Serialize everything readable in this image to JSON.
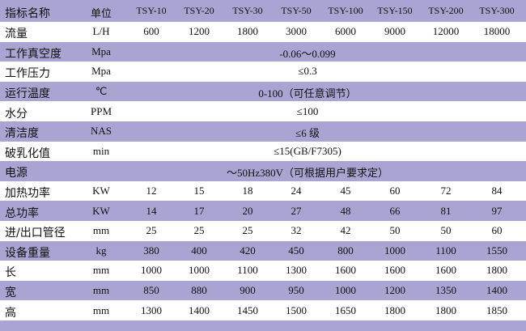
{
  "table": {
    "header": {
      "label": "指标名称",
      "unit": "单位",
      "models": [
        "TSY-10",
        "TSY-20",
        "TSY-30",
        "TSY-50",
        "TSY-100",
        "TSY-150",
        "TSY-200",
        "TSY-300"
      ]
    },
    "rows": [
      {
        "label": "流量",
        "unit": "L/H",
        "values": [
          600,
          1200,
          1800,
          3000,
          6000,
          9000,
          12000,
          18000
        ]
      },
      {
        "label": "工作真空度",
        "unit": "Mpa",
        "value": "-0.06～0.099"
      },
      {
        "label": "工作压力",
        "unit": "Mpa",
        "value": "≤0.3"
      },
      {
        "label": "运行温度",
        "unit": "℃",
        "value": "0-100（可任意调节）"
      },
      {
        "label": "水分",
        "unit": "PPM",
        "value": "≤100"
      },
      {
        "label": "清洁度",
        "unit": "NAS",
        "value": "≤6 级"
      },
      {
        "label": "破乳化值",
        "unit": "min",
        "value": "≤15(GB/F7305)"
      },
      {
        "label": "电源",
        "value": "～50Hz380V（可根据用户要求定）"
      },
      {
        "label": "加热功率",
        "unit": "KW",
        "values": [
          12,
          15,
          18,
          24,
          45,
          60,
          72,
          84
        ]
      },
      {
        "label": "总功率",
        "unit": "KW",
        "values": [
          14,
          17,
          20,
          27,
          48,
          66,
          81,
          97
        ]
      },
      {
        "label": "进/出口管径",
        "unit": "mm",
        "values": [
          25,
          25,
          25,
          32,
          42,
          50,
          50,
          60
        ]
      },
      {
        "label": "设备重量",
        "unit": "kg",
        "values": [
          380,
          400,
          420,
          450,
          800,
          1000,
          1100,
          1550
        ]
      },
      {
        "label": "长",
        "unit": "mm",
        "values": [
          1000,
          1000,
          1100,
          1300,
          1600,
          1600,
          1600,
          1800
        ]
      },
      {
        "label": "宽",
        "unit": "mm",
        "values": [
          850,
          880,
          900,
          950,
          1000,
          1200,
          1350,
          1400
        ]
      },
      {
        "label": "高",
        "unit": "mm",
        "values": [
          1300,
          1400,
          1450,
          1500,
          1650,
          1800,
          1800,
          1850
        ]
      }
    ]
  }
}
